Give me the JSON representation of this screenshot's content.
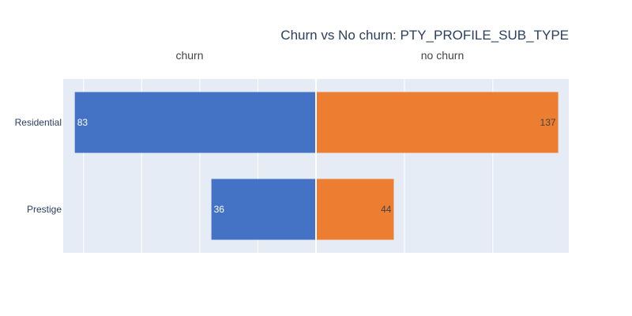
{
  "chart_data": {
    "type": "bar",
    "orientation": "horizontal",
    "title": "Churn vs No churn: PTY_PROFILE_SUB_TYPE",
    "categories": [
      "Residential",
      "Prestige"
    ],
    "series": [
      {
        "name": "churn",
        "values": [
          83,
          36
        ],
        "color": "#4472c4",
        "label_color": "#ffffff",
        "side": "left"
      },
      {
        "name": "no churn",
        "values": [
          137,
          44
        ],
        "color": "#ed7d31",
        "label_color": "#444444",
        "side": "right"
      }
    ],
    "left_xlim": [
      0,
      87
    ],
    "right_xlim": [
      0,
      143
    ],
    "grid": true
  }
}
